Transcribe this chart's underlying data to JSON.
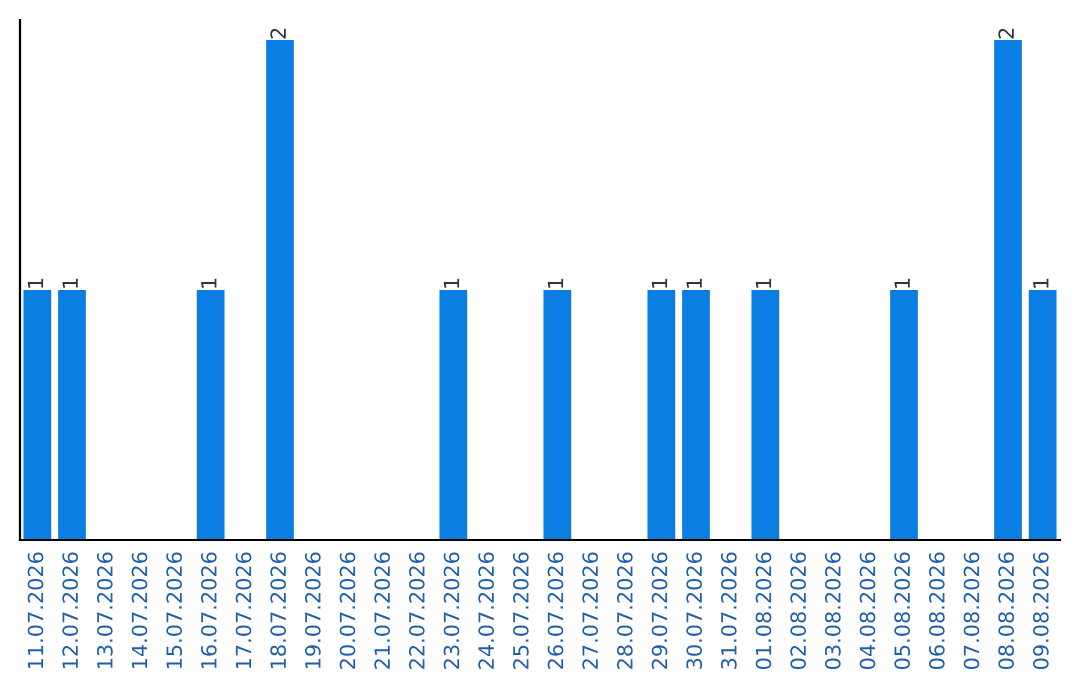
{
  "chart_data": {
    "type": "bar",
    "categories": [
      "11.07.2026",
      "12.07.2026",
      "13.07.2026",
      "14.07.2026",
      "15.07.2026",
      "16.07.2026",
      "17.07.2026",
      "18.07.2026",
      "19.07.2026",
      "20.07.2026",
      "21.07.2026",
      "22.07.2026",
      "23.07.2026",
      "24.07.2026",
      "25.07.2026",
      "26.07.2026",
      "27.07.2026",
      "28.07.2026",
      "29.07.2026",
      "30.07.2026",
      "31.07.2026",
      "01.08.2026",
      "02.08.2026",
      "03.08.2026",
      "04.08.2026",
      "05.08.2026",
      "06.08.2026",
      "07.08.2026",
      "08.08.2026",
      "09.08.2026"
    ],
    "values": [
      1,
      1,
      0,
      0,
      0,
      1,
      0,
      2,
      0,
      0,
      0,
      0,
      1,
      0,
      0,
      1,
      0,
      0,
      1,
      1,
      0,
      1,
      0,
      0,
      0,
      1,
      0,
      0,
      2,
      1
    ],
    "value_labels": [
      "1",
      "1",
      null,
      null,
      null,
      "1",
      null,
      "2",
      null,
      null,
      null,
      null,
      "1",
      null,
      null,
      "1",
      null,
      null,
      "1",
      "1",
      null,
      "1",
      null,
      null,
      null,
      "1",
      null,
      null,
      "2",
      "1"
    ],
    "color": "#0a7de3",
    "tick_labels": "x",
    "grid": false,
    "legend": false
  }
}
